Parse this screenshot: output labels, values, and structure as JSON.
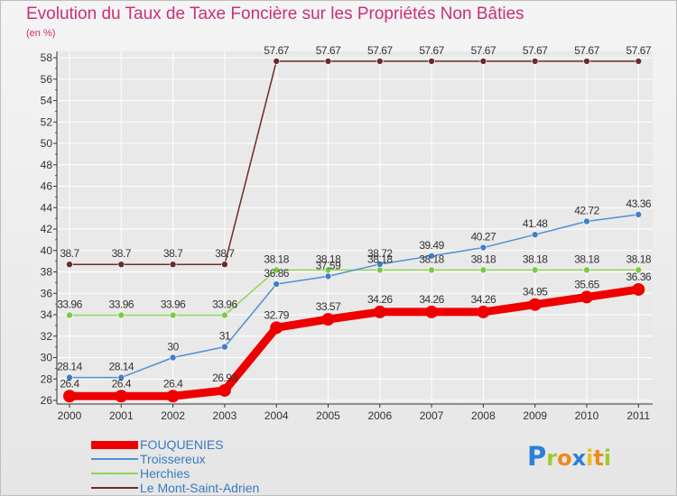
{
  "header": {
    "title": "Evolution du Taux de Taxe Foncière sur les Propriétés Non Bâties",
    "unit": "(en %)"
  },
  "logo": {
    "letters": [
      "P",
      "r",
      "o",
      "x",
      "i",
      "t",
      "i"
    ]
  },
  "colors": {
    "title": "#c8307a",
    "axis": "#333333",
    "grid": "#ffffff",
    "series": [
      "#ee0000",
      "#4f8fd6",
      "#8fd65a",
      "#6b2b2b"
    ],
    "marker": [
      "#ee0000",
      "#3f7fc8",
      "#7acb42",
      "#6b2b2b"
    ],
    "logo": [
      "#2d7fd8",
      "#9fcc2e",
      "#f08a1c",
      "#2d7fd8",
      "#e8c020",
      "#f08a1c",
      "#9fcc2e"
    ]
  },
  "chart_data": {
    "type": "line",
    "title": "Evolution du Taux de Taxe Foncière sur les Propriétés Non Bâties",
    "ylabel": "(en %)",
    "xlabel": "",
    "ylim": [
      26,
      58
    ],
    "yticks": [
      26,
      28,
      30,
      32,
      34,
      36,
      38,
      40,
      42,
      44,
      46,
      48,
      50,
      52,
      54,
      56,
      58
    ],
    "categories": [
      "2000",
      "2001",
      "2002",
      "2003",
      "2004",
      "2005",
      "2006",
      "2007",
      "2008",
      "2009",
      "2010",
      "2011"
    ],
    "legend_position": "bottom-left",
    "series": [
      {
        "name": "FOUQUENIES",
        "values": [
          26.4,
          26.4,
          26.4,
          26.93,
          32.79,
          33.57,
          34.26,
          34.26,
          34.26,
          34.95,
          35.65,
          36.36
        ],
        "labels": [
          "26.4",
          "26.4",
          "26.4",
          "26.93",
          "32.79",
          "33.57",
          "34.26",
          "34.26",
          "34.26",
          "34.95",
          "35.65",
          "36.36"
        ]
      },
      {
        "name": "Troissereux",
        "values": [
          28.14,
          28.14,
          30,
          31,
          36.86,
          37.59,
          38.72,
          39.49,
          40.27,
          41.48,
          42.72,
          43.36
        ],
        "labels": [
          "28.14",
          "28.14",
          "30",
          "31",
          "36.86",
          "37.59",
          "38.72",
          "39.49",
          "40.27",
          "41.48",
          "42.72",
          "43.36"
        ]
      },
      {
        "name": "Herchies",
        "values": [
          33.96,
          33.96,
          33.96,
          33.96,
          38.18,
          38.18,
          38.18,
          38.18,
          38.18,
          38.18,
          38.18,
          38.18
        ],
        "labels": [
          "33.96",
          "33.96",
          "33.96",
          "33.96",
          "38.18",
          "38.18",
          "38.18",
          "38.18",
          "38.18",
          "38.18",
          "38.18",
          "38.18"
        ]
      },
      {
        "name": "Le Mont-Saint-Adrien",
        "values": [
          38.7,
          38.7,
          38.7,
          38.7,
          57.67,
          57.67,
          57.67,
          57.67,
          57.67,
          57.67,
          57.67,
          57.67
        ],
        "labels": [
          "38.7",
          "38.7",
          "38.7",
          "38.7",
          "57.67",
          "57.67",
          "57.67",
          "57.67",
          "57.67",
          "57.67",
          "57.67",
          "57.67"
        ]
      }
    ]
  }
}
